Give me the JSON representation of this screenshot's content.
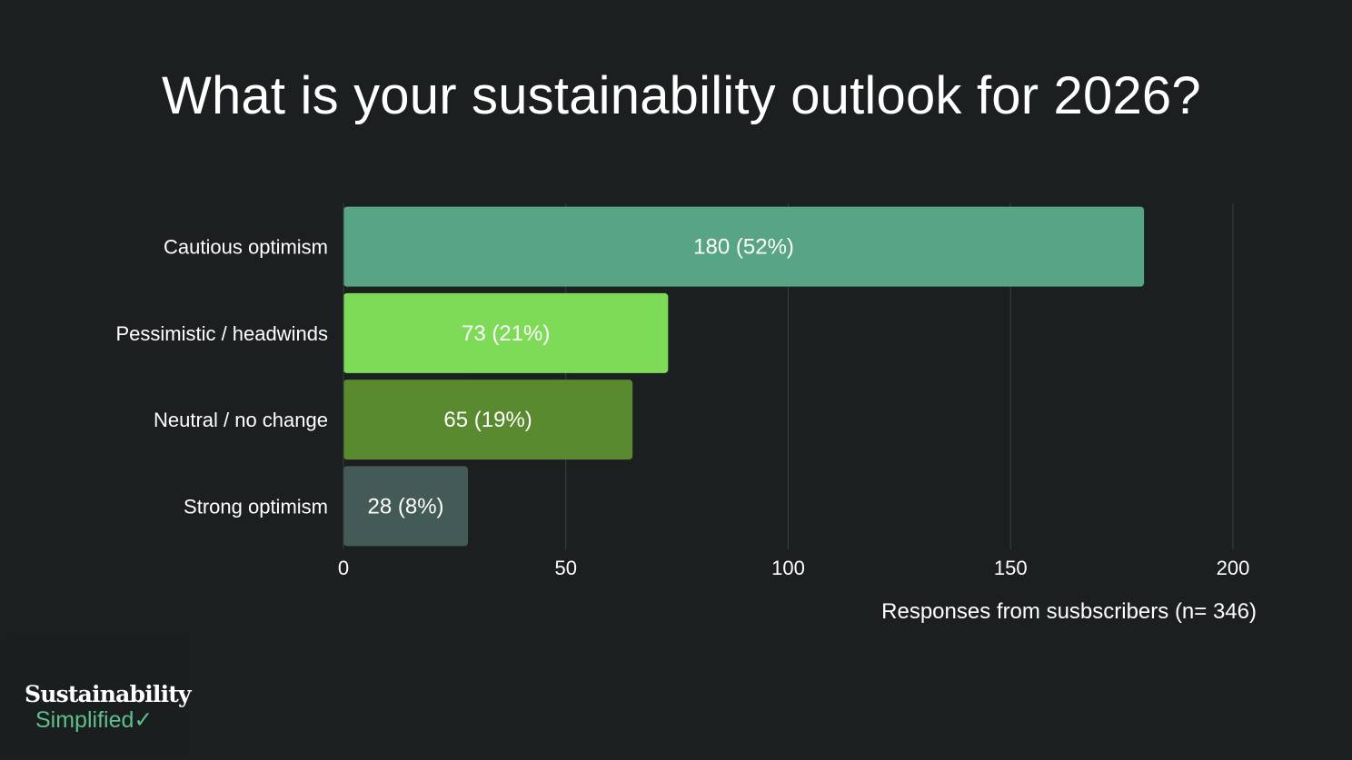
{
  "title": "What is your sustainability outlook for 2026?",
  "chart_data": {
    "type": "bar",
    "orientation": "horizontal",
    "title": "What is your sustainability outlook for 2026?",
    "categories": [
      "Cautious optimism",
      "Pessimistic / headwinds",
      "Neutral / no change",
      "Strong optimism"
    ],
    "values": [
      180,
      73,
      65,
      28
    ],
    "data_labels": [
      "180 (52%)",
      "73 (21%)",
      "65 (19%)",
      "28 (8%)"
    ],
    "colors": [
      "#57a585",
      "#7edb58",
      "#5a8a2f",
      "#435a56"
    ],
    "xlabel": "Responses from susbscribers (n= 346)",
    "ylabel": "",
    "xlim": [
      0,
      200
    ],
    "xticks": [
      0,
      50,
      100,
      150,
      200
    ],
    "grid": true
  },
  "brand": {
    "line1": "Sustainability",
    "line2": "Simplified",
    "check": "✓",
    "accent_color": "#5fbf8a"
  }
}
